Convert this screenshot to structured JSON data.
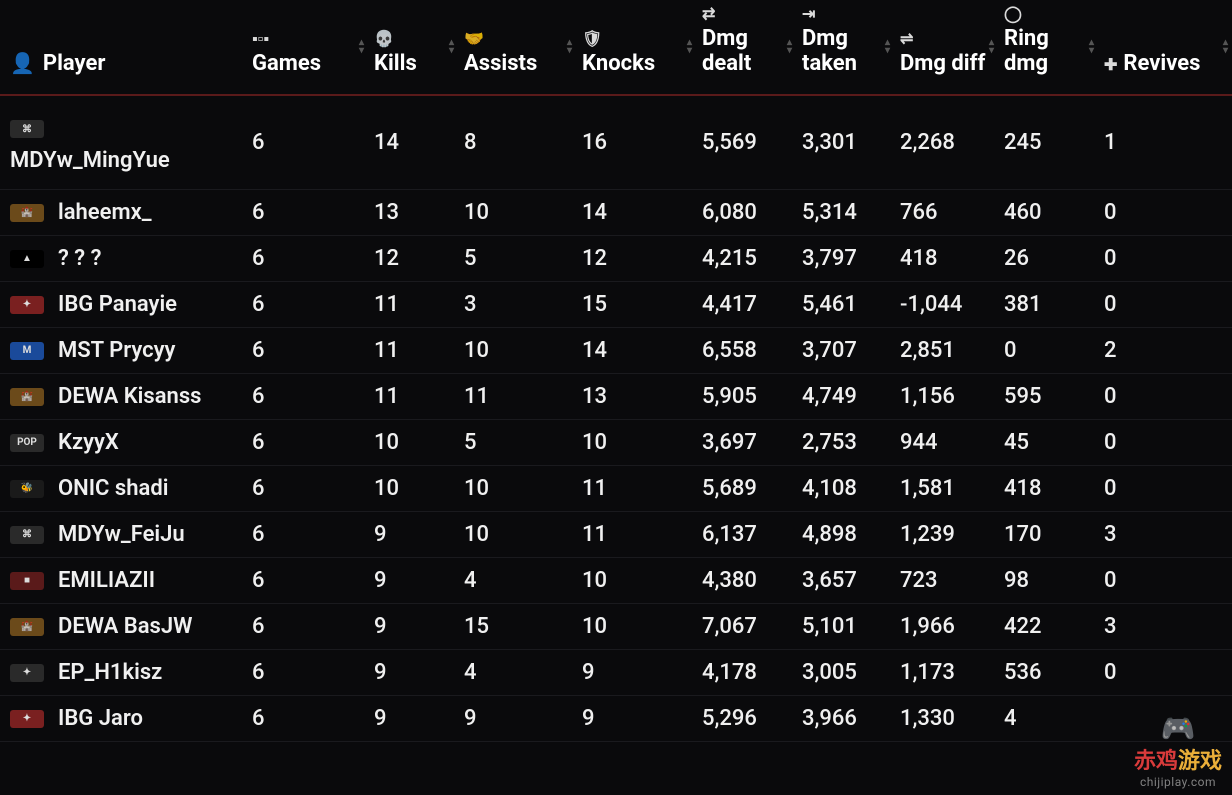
{
  "columns": [
    {
      "key": "player",
      "label": "Player",
      "icon": "👤"
    },
    {
      "key": "games",
      "label": "Games",
      "icon": "▪▫▪"
    },
    {
      "key": "kills",
      "label": "Kills",
      "icon": "💀"
    },
    {
      "key": "assists",
      "label": "Assists",
      "icon": "🤝"
    },
    {
      "key": "knocks",
      "label": "Knocks",
      "icon": "🛡"
    },
    {
      "key": "dealt",
      "label": "Dmg dealt",
      "icon": "⇄"
    },
    {
      "key": "taken",
      "label": "Dmg taken",
      "icon": "⇥"
    },
    {
      "key": "diff",
      "label": "Dmg diff",
      "icon": "⇌"
    },
    {
      "key": "ring",
      "label": "Ring dmg",
      "icon": "◯"
    },
    {
      "key": "revives",
      "label": "Revives",
      "icon": "✚"
    }
  ],
  "colors": {
    "background": "#0a0a0c",
    "text": "#f0f0f0",
    "header_border": "#5a1a1a",
    "row_border": "#1a1a1e",
    "sort_arrows": "#555555"
  },
  "rows": [
    {
      "stacked": true,
      "logo_bg": "#2a2a2a",
      "logo_txt": "⌘",
      "name": "MDYw_MingYue",
      "games": "6",
      "kills": "14",
      "assists": "8",
      "knocks": "16",
      "dealt": "5,569",
      "taken": "3,301",
      "diff": "2,268",
      "ring": "245",
      "revives": "1"
    },
    {
      "stacked": false,
      "logo_bg": "#6b4a1a",
      "logo_txt": "🏰",
      "name": "laheemx_",
      "games": "6",
      "kills": "13",
      "assists": "10",
      "knocks": "14",
      "dealt": "6,080",
      "taken": "5,314",
      "diff": "766",
      "ring": "460",
      "revives": "0"
    },
    {
      "stacked": false,
      "logo_bg": "#000000",
      "logo_txt": "▲",
      "name": "? ? ?",
      "games": "6",
      "kills": "12",
      "assists": "5",
      "knocks": "12",
      "dealt": "4,215",
      "taken": "3,797",
      "diff": "418",
      "ring": "26",
      "revives": "0"
    },
    {
      "stacked": false,
      "logo_bg": "#7a2020",
      "logo_txt": "✦",
      "name": "IBG Panayie",
      "games": "6",
      "kills": "11",
      "assists": "3",
      "knocks": "15",
      "dealt": "4,417",
      "taken": "5,461",
      "diff": "-1,044",
      "ring": "381",
      "revives": "0"
    },
    {
      "stacked": false,
      "logo_bg": "#1a4a9a",
      "logo_txt": "M",
      "name": "MST Prycyy",
      "games": "6",
      "kills": "11",
      "assists": "10",
      "knocks": "14",
      "dealt": "6,558",
      "taken": "3,707",
      "diff": "2,851",
      "ring": "0",
      "revives": "2"
    },
    {
      "stacked": false,
      "logo_bg": "#6b4a1a",
      "logo_txt": "🏰",
      "name": "DEWA Kisanss",
      "games": "6",
      "kills": "11",
      "assists": "11",
      "knocks": "13",
      "dealt": "5,905",
      "taken": "4,749",
      "diff": "1,156",
      "ring": "595",
      "revives": "0"
    },
    {
      "stacked": false,
      "logo_bg": "#2a2a2a",
      "logo_txt": "POP",
      "name": "KzyyX",
      "games": "6",
      "kills": "10",
      "assists": "5",
      "knocks": "10",
      "dealt": "3,697",
      "taken": "2,753",
      "diff": "944",
      "ring": "45",
      "revives": "0"
    },
    {
      "stacked": false,
      "logo_bg": "#1a1a1a",
      "logo_txt": "🐝",
      "name": "ONIC shadi",
      "games": "6",
      "kills": "10",
      "assists": "10",
      "knocks": "11",
      "dealt": "5,689",
      "taken": "4,108",
      "diff": "1,581",
      "ring": "418",
      "revives": "0"
    },
    {
      "stacked": false,
      "logo_bg": "#2a2a2a",
      "logo_txt": "⌘",
      "name": "MDYw_FeiJu",
      "games": "6",
      "kills": "9",
      "assists": "10",
      "knocks": "11",
      "dealt": "6,137",
      "taken": "4,898",
      "diff": "1,239",
      "ring": "170",
      "revives": "3"
    },
    {
      "stacked": false,
      "logo_bg": "#5a1a1a",
      "logo_txt": "■",
      "name": "EMILIAZII",
      "games": "6",
      "kills": "9",
      "assists": "4",
      "knocks": "10",
      "dealt": "4,380",
      "taken": "3,657",
      "diff": "723",
      "ring": "98",
      "revives": "0"
    },
    {
      "stacked": false,
      "logo_bg": "#6b4a1a",
      "logo_txt": "🏰",
      "name": "DEWA BasJW",
      "games": "6",
      "kills": "9",
      "assists": "15",
      "knocks": "10",
      "dealt": "7,067",
      "taken": "5,101",
      "diff": "1,966",
      "ring": "422",
      "revives": "3"
    },
    {
      "stacked": false,
      "logo_bg": "#2a2a2a",
      "logo_txt": "✦",
      "name": "EP_H1kisz",
      "games": "6",
      "kills": "9",
      "assists": "4",
      "knocks": "9",
      "dealt": "4,178",
      "taken": "3,005",
      "diff": "1,173",
      "ring": "536",
      "revives": "0"
    },
    {
      "stacked": false,
      "logo_bg": "#7a2020",
      "logo_txt": "✦",
      "name": "IBG Jaro",
      "games": "6",
      "kills": "9",
      "assists": "9",
      "knocks": "9",
      "dealt": "5,296",
      "taken": "3,966",
      "diff": "1,330",
      "ring": "4",
      "revives": ""
    }
  ],
  "watermark": {
    "logo": "🎮",
    "text_left": "赤鸡",
    "text_right": "游戏",
    "url": "chijiplay.com"
  }
}
